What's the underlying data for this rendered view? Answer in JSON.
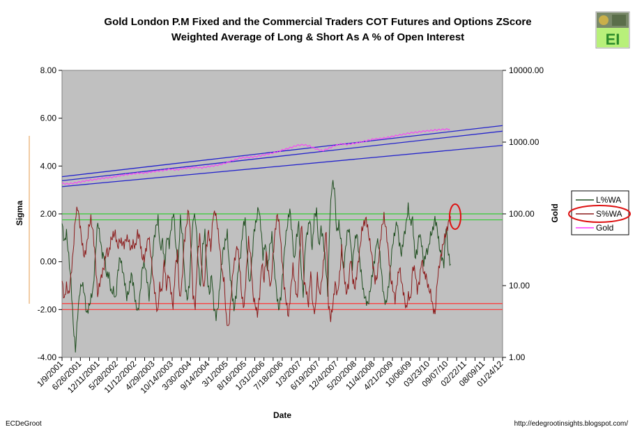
{
  "chart_data": {
    "type": "line",
    "title": "Gold London P.M Fixed and the Commercial Traders COT Futures and Options ZScore",
    "subtitle": "Weighted Average of Long & Short As A % of Open Interest",
    "xlabel": "Date",
    "ylabel_left": "Sigma",
    "ylabel_right": "Gold",
    "ylim_left": [
      -4,
      8
    ],
    "ylim_right": [
      1,
      10000
    ],
    "right_scale": "log",
    "left_ticks": [
      "8.00",
      "6.00",
      "4.00",
      "2.00",
      "0.00",
      "-2.00",
      "-4.00"
    ],
    "right_ticks": [
      "10000.00",
      "1000.00",
      "100.00",
      "10.00",
      "1.00"
    ],
    "x_tick_labels": [
      "1/9/2001",
      "6/26/2001",
      "12/11/2001",
      "5/28/2002",
      "11/12/2002",
      "4/29/2003",
      "10/14/2003",
      "3/30/2004",
      "9/14/2004",
      "3/1/2005",
      "8/16/2005",
      "1/31/2006",
      "7/18/2006",
      "1/3/2007",
      "6/19/2007",
      "12/4/2007",
      "5/20/2008",
      "11/4/2008",
      "4/21/2009",
      "10/06/09",
      "03/23/10",
      "09/07/10",
      "02/22/11",
      "08/09/11",
      "01/24/12"
    ],
    "reference_lines": [
      {
        "axis": "left",
        "value": 2.0,
        "color": "#33cc33"
      },
      {
        "axis": "left",
        "value": 1.75,
        "color": "#33cc33"
      },
      {
        "axis": "left",
        "value": -1.75,
        "color": "#ff3333"
      },
      {
        "axis": "left",
        "value": -2.0,
        "color": "#ff3333"
      }
    ],
    "channel_lines": [
      {
        "axis": "right",
        "start": [
          0,
          330
        ],
        "end": [
          1,
          1700
        ],
        "color": "#2222cc"
      },
      {
        "axis": "right",
        "start": [
          0,
          290
        ],
        "end": [
          1,
          1420
        ],
        "color": "#2222cc"
      },
      {
        "axis": "right",
        "start": [
          0,
          240
        ],
        "end": [
          1,
          900
        ],
        "color": "#2222cc"
      }
    ],
    "series": [
      {
        "name": "L%WA",
        "color": "#1e4d1e",
        "axis": "left",
        "x_range": [
          0,
          0.882
        ],
        "values": [
          1.6,
          0.8,
          1.2,
          0.2,
          -0.8,
          -2.6,
          -3.7,
          -2.2,
          -1.2,
          -0.9,
          -1.3,
          -2.2,
          -1.9,
          -1.5,
          -1.1,
          0.4,
          1.7,
          1.0,
          0.3,
          0.2,
          -0.6,
          -0.5,
          -1.3,
          -1.2,
          -1.6,
          -0.4,
          0.2,
          -0.3,
          -0.8,
          -1.5,
          -1.2,
          -0.5,
          -1.0,
          -1.8,
          -2.1,
          -1.3,
          -0.2,
          -0.1,
          -0.7,
          -1.5,
          -0.4,
          0.8,
          1.4,
          1.8,
          0.5,
          0.9,
          -0.2,
          1.1,
          0.7,
          1.5,
          2.1,
          0.6,
          -0.1,
          1.8,
          1.0,
          -0.8,
          -1.6,
          -1.0,
          0.9,
          2.0,
          1.6,
          -0.1,
          -1.1,
          0.6,
          1.2,
          -0.6,
          -1.4,
          -0.5,
          -1.9,
          -2.3,
          -1.8,
          -0.6,
          0.4,
          0.8,
          1.2,
          -0.3,
          -1.2,
          -2.0,
          -1.4,
          -0.2,
          0.3,
          1.4,
          1.8,
          0.2,
          -1.0,
          0.0,
          1.3,
          1.7,
          2.3,
          1.5,
          0.2,
          0.8,
          -0.4,
          0.6,
          1.1,
          -0.2,
          -1.2,
          -2.0,
          -1.5,
          -0.3,
          0.9,
          1.6,
          2.2,
          1.2,
          0.0,
          1.0,
          1.6,
          -0.2,
          -1.4,
          0.8,
          1.3,
          1.8,
          0.5,
          1.9,
          2.1,
          0.6,
          1.4,
          0.9,
          -0.1,
          -1.3,
          2.0,
          3.3,
          3.1,
          1.2,
          1.6,
          0.8,
          -0.4,
          0.6,
          1.4,
          1.1,
          -0.2,
          0.8,
          1.2,
          0.3,
          -0.5,
          -1.3,
          -1.6,
          -1.8,
          -1.2,
          -0.5,
          0.1,
          0.9,
          0.6,
          -0.4,
          -1.4,
          -1.8,
          -1.2,
          -0.3,
          0.7,
          1.2,
          1.7,
          0.8,
          0.3,
          1.0,
          1.5,
          2.3,
          1.6,
          1.8,
          0.2,
          0.4,
          1.2,
          0.8,
          -0.1,
          0.4,
          0.5,
          1.1,
          1.3,
          1.8,
          1.4,
          0.6,
          0.2,
          -0.1,
          1.5,
          0.3,
          -0.1
        ]
      },
      {
        "name": "S%WA",
        "color": "#8b1a1a",
        "axis": "left",
        "x_range": [
          0,
          0.882
        ],
        "values": [
          -0.8,
          -1.6,
          -1.0,
          -1.4,
          -0.6,
          0.4,
          1.8,
          2.3,
          1.6,
          0.8,
          0.2,
          0.6,
          1.4,
          1.8,
          1.2,
          0.1,
          -1.4,
          -0.9,
          -0.5,
          -0.2,
          0.5,
          0.3,
          0.9,
          1.1,
          1.2,
          0.6,
          0.9,
          0.8,
          0.7,
          1.0,
          0.9,
          0.5,
          0.8,
          0.6,
          1.2,
          1.0,
          0.2,
          0.1,
          0.6,
          1.1,
          0.3,
          -0.7,
          -1.4,
          -2.2,
          -1.0,
          -1.3,
          0.1,
          -1.1,
          -0.5,
          -1.2,
          -1.9,
          -0.3,
          0.4,
          -1.6,
          -0.9,
          0.8,
          1.5,
          2.2,
          0.8,
          -1.4,
          -1.9,
          0.2,
          1.1,
          -0.4,
          -1.2,
          0.6,
          1.3,
          0.5,
          1.9,
          2.1,
          1.5,
          0.6,
          -0.4,
          -0.8,
          -2.4,
          -2.8,
          -1.6,
          -0.4,
          0.2,
          0.7,
          -0.2,
          -1.5,
          -1.9,
          -0.4,
          0.9,
          0.2,
          -1.4,
          -1.8,
          -2.2,
          -1.4,
          0.0,
          -0.8,
          0.4,
          -0.5,
          -1.1,
          0.2,
          1.3,
          2.0,
          1.4,
          0.2,
          -1.0,
          -1.7,
          -2.3,
          -1.2,
          -0.2,
          -1.0,
          -1.6,
          0.4,
          1.6,
          -0.8,
          -1.2,
          -1.8,
          -0.4,
          -1.9,
          -2.1,
          -0.6,
          -1.4,
          -0.8,
          0.2,
          1.4,
          -1.8,
          -2.4,
          -1.8,
          -0.9,
          -1.4,
          -0.6,
          0.6,
          -0.5,
          -1.3,
          -1.0,
          0.2,
          -0.8,
          -1.1,
          -0.3,
          0.4,
          1.3,
          1.6,
          1.8,
          1.2,
          0.6,
          -0.1,
          -0.8,
          -0.6,
          0.5,
          1.4,
          1.9,
          1.3,
          0.4,
          -0.7,
          -1.1,
          -1.6,
          -0.8,
          -0.2,
          -0.9,
          -1.4,
          -2.0,
          -1.4,
          -1.6,
          -0.2,
          -0.4,
          -1.2,
          -0.8,
          0.1,
          -0.5,
          -0.6,
          -1.1,
          -1.3,
          -1.9,
          -2.2,
          -0.8,
          -0.1,
          0.4,
          0.9,
          1.2,
          1.6,
          1.9
        ]
      },
      {
        "name": "Gold",
        "color": "#ff33ff",
        "axis": "right",
        "x_range": [
          0,
          0.88
        ],
        "values": [
          265,
          262,
          270,
          280,
          292,
          300,
          310,
          318,
          325,
          340,
          352,
          360,
          370,
          372,
          385,
          395,
          405,
          420,
          410,
          428,
          435,
          445,
          440,
          455,
          470,
          490,
          520,
          560,
          600,
          610,
          620,
          640,
          670,
          700,
          740,
          790,
          840,
          900,
          920,
          880,
          800,
          760,
          820,
          900,
          940,
          930,
          960,
          1000,
          1050,
          1100,
          1120,
          1150,
          1200,
          1250,
          1300,
          1350,
          1380,
          1420,
          1450,
          1480,
          1500,
          1520
        ]
      }
    ],
    "legend": {
      "position": "right",
      "entries": [
        "L%WA",
        "S%WA",
        "Gold"
      ]
    }
  },
  "footer": {
    "left": "ECDeGroot",
    "right": "http://edegrootinsights.blogspot.com/"
  },
  "logo": {
    "text": "EI",
    "color": "#2a8a2a",
    "bg": "#b8f07a"
  }
}
